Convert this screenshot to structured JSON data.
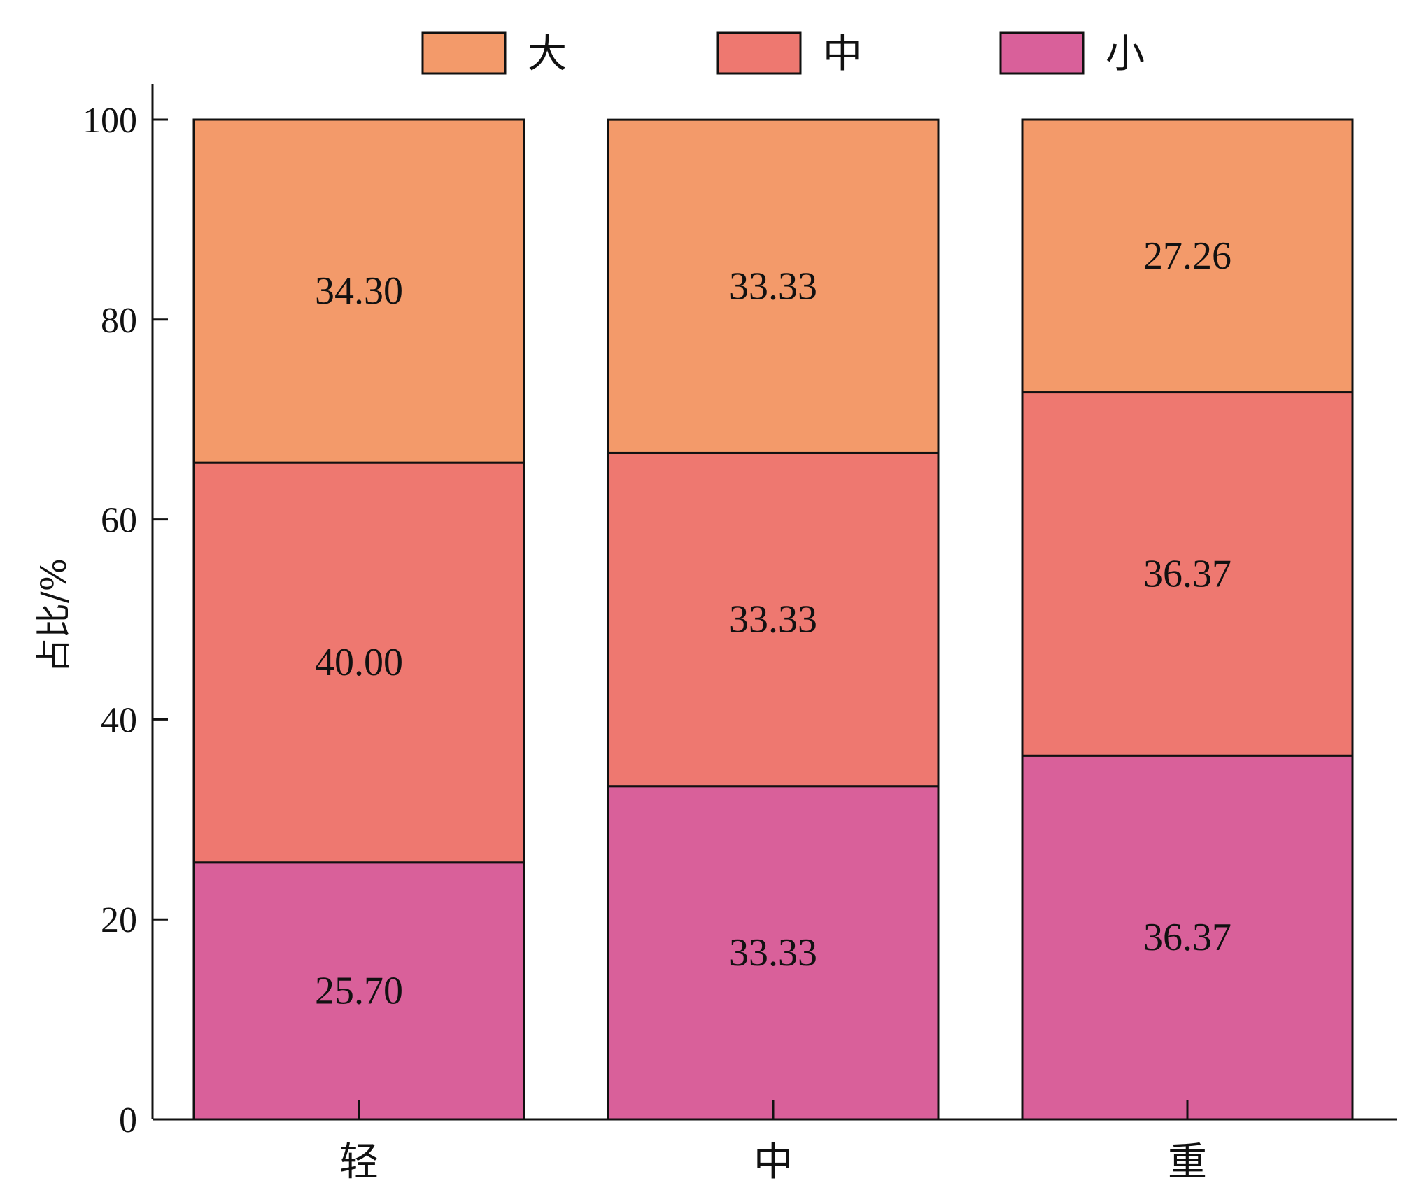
{
  "chart_data": {
    "type": "bar",
    "stacked": true,
    "categories": [
      "轻",
      "中",
      "重"
    ],
    "series": [
      {
        "name": "小",
        "values": [
          25.7,
          33.33,
          36.37
        ],
        "color": "#D9609A"
      },
      {
        "name": "中",
        "values": [
          40.0,
          33.33,
          36.37
        ],
        "color": "#EE7870"
      },
      {
        "name": "大",
        "values": [
          34.3,
          33.33,
          27.26
        ],
        "color": "#F39A6A"
      }
    ],
    "data_labels": [
      [
        "25.70",
        "33.33",
        "36.37"
      ],
      [
        "40.00",
        "33.33",
        "36.37"
      ],
      [
        "34.30",
        "33.33",
        "27.26"
      ]
    ],
    "legend_order": [
      "大",
      "中",
      "小"
    ],
    "legend_position": "top",
    "title": "",
    "xlabel": "",
    "ylabel": "占比/%",
    "ylim": [
      0,
      100
    ],
    "yticks": [
      0,
      20,
      40,
      60,
      80,
      100
    ],
    "grid": false
  }
}
